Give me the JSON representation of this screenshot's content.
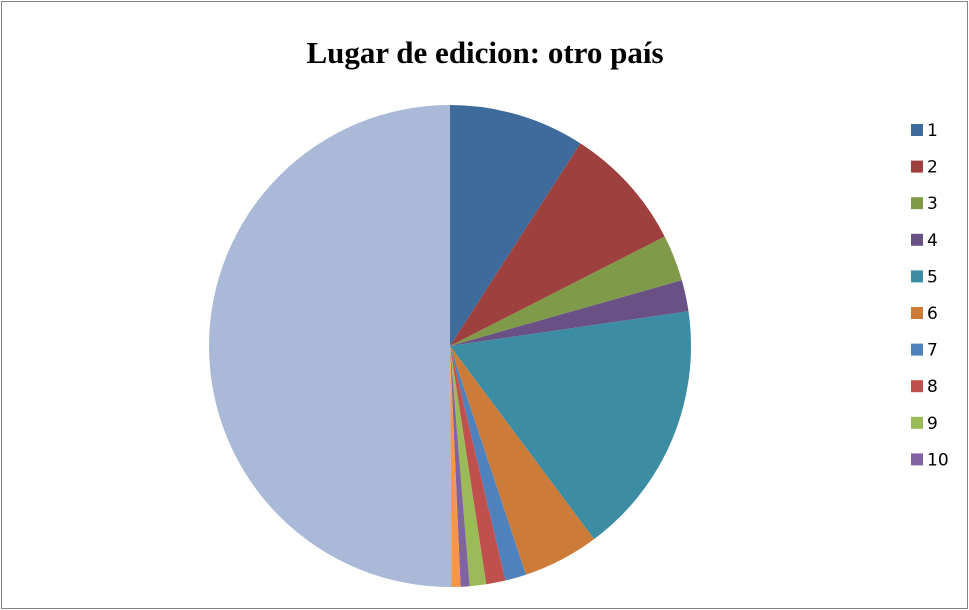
{
  "chart_data": {
    "type": "pie",
    "title": "Lugar de edicion: otro país",
    "categories": [
      "1",
      "2",
      "3",
      "4",
      "5",
      "6",
      "7",
      "8",
      "9",
      "10",
      null,
      null
    ],
    "values": [
      9.1,
      8.4,
      3.1,
      2.1,
      17.1,
      5.1,
      1.4,
      1.3,
      1.1,
      0.6,
      0.6,
      50.1
    ],
    "colors": [
      "#3E6A9C",
      "#9E413E",
      "#7F9A48",
      "#695185",
      "#3C8DA3",
      "#CC7B38",
      "#4F81BD",
      "#C0504D",
      "#9BBB59",
      "#8064A2",
      "#F79646",
      "#AAB9D8"
    ],
    "legend": "right"
  }
}
